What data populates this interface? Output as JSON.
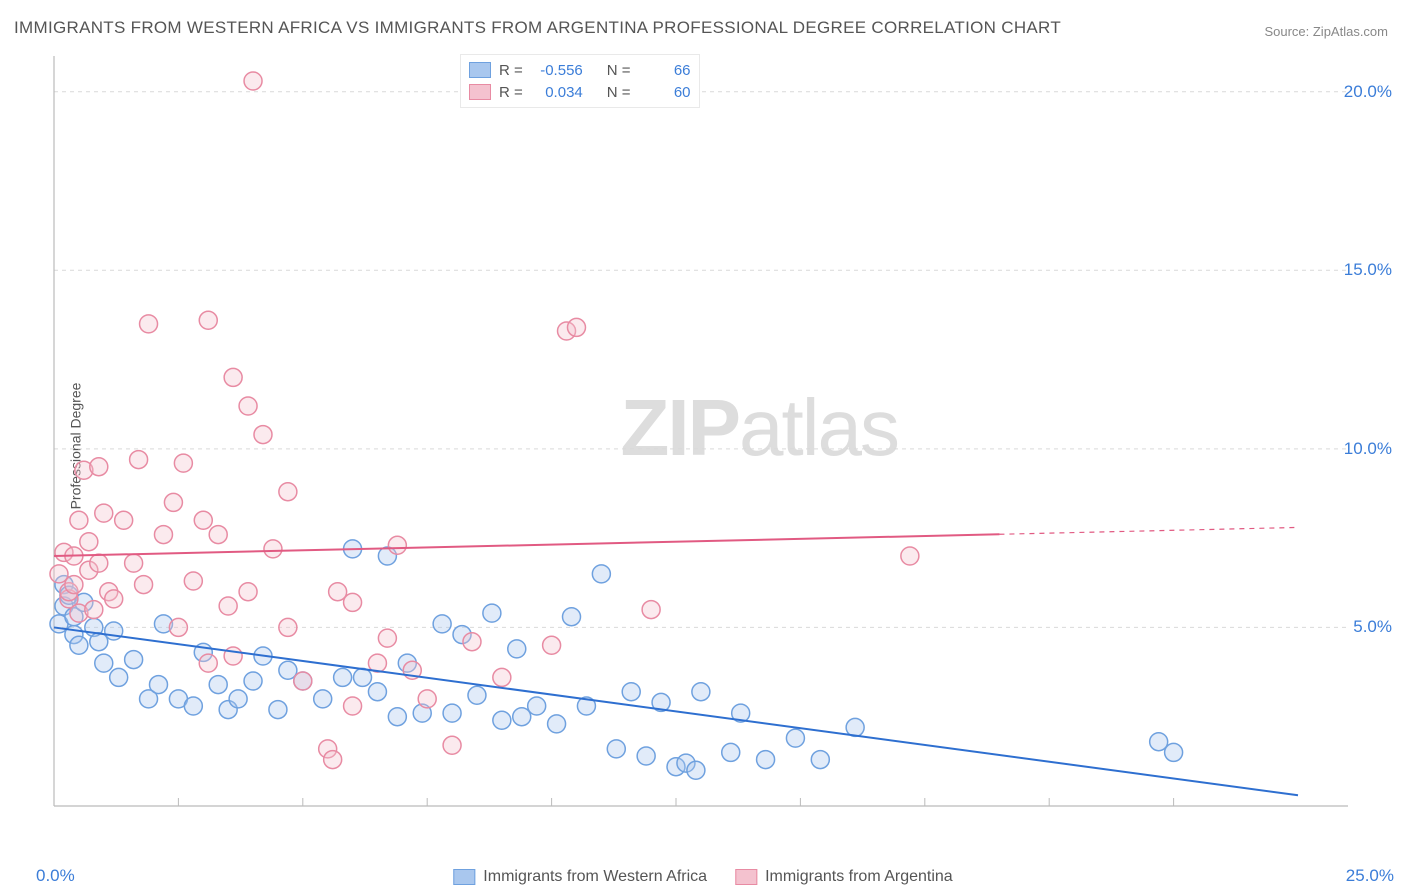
{
  "title": "IMMIGRANTS FROM WESTERN AFRICA VS IMMIGRANTS FROM ARGENTINA PROFESSIONAL DEGREE CORRELATION CHART",
  "source_label": "Source: ",
  "source_link": "ZipAtlas.com",
  "y_axis_label": "Professional Degree",
  "watermark_bold": "ZIP",
  "watermark_rest": "atlas",
  "chart": {
    "type": "scatter",
    "xlim": [
      0,
      25
    ],
    "ylim": [
      0,
      21
    ],
    "x_origin_label": "0.0%",
    "x_max_label": "25.0%",
    "y_ticks": [
      5.0,
      10.0,
      15.0,
      20.0
    ],
    "y_tick_labels": [
      "5.0%",
      "10.0%",
      "15.0%",
      "20.0%"
    ],
    "x_ticks_minor": [
      2.5,
      5.0,
      7.5,
      10.0,
      12.5,
      15.0,
      17.5,
      20.0,
      22.5
    ],
    "grid_color": "#d9d9d9",
    "axis_color": "#bbbbbb",
    "background_color": "#ffffff",
    "marker_radius": 9,
    "marker_stroke_width": 1.5,
    "marker_fill_opacity": 0.35,
    "trend_line_width": 2,
    "trend_dash_width": 1.2,
    "series": [
      {
        "name": "Immigrants from Western Africa",
        "color_fill": "#a9c7ee",
        "color_stroke": "#6fa1df",
        "trend_color": "#2e6fd0",
        "R": "-0.556",
        "N": "66",
        "trend": {
          "x1": 0,
          "y1": 5.0,
          "x2": 25,
          "y2": 0.3,
          "solid_until_x": 25
        },
        "points": [
          [
            0.1,
            5.1
          ],
          [
            0.2,
            6.2
          ],
          [
            0.2,
            5.6
          ],
          [
            0.3,
            5.9
          ],
          [
            0.4,
            4.8
          ],
          [
            0.4,
            5.3
          ],
          [
            0.5,
            4.5
          ],
          [
            0.6,
            5.7
          ],
          [
            0.8,
            5.0
          ],
          [
            0.9,
            4.6
          ],
          [
            1.0,
            4.0
          ],
          [
            1.2,
            4.9
          ],
          [
            1.3,
            3.6
          ],
          [
            1.6,
            4.1
          ],
          [
            1.9,
            3.0
          ],
          [
            2.1,
            3.4
          ],
          [
            2.2,
            5.1
          ],
          [
            2.5,
            3.0
          ],
          [
            2.8,
            2.8
          ],
          [
            3.0,
            4.3
          ],
          [
            3.3,
            3.4
          ],
          [
            3.5,
            2.7
          ],
          [
            3.7,
            3.0
          ],
          [
            4.0,
            3.5
          ],
          [
            4.2,
            4.2
          ],
          [
            4.5,
            2.7
          ],
          [
            4.7,
            3.8
          ],
          [
            5.0,
            3.5
          ],
          [
            5.4,
            3.0
          ],
          [
            5.8,
            3.6
          ],
          [
            6.0,
            7.2
          ],
          [
            6.2,
            3.6
          ],
          [
            6.5,
            3.2
          ],
          [
            6.7,
            7.0
          ],
          [
            6.9,
            2.5
          ],
          [
            7.1,
            4.0
          ],
          [
            7.4,
            2.6
          ],
          [
            7.8,
            5.1
          ],
          [
            8.0,
            2.6
          ],
          [
            8.2,
            4.8
          ],
          [
            8.5,
            3.1
          ],
          [
            8.8,
            5.4
          ],
          [
            9.0,
            2.4
          ],
          [
            9.3,
            4.4
          ],
          [
            9.4,
            2.5
          ],
          [
            9.7,
            2.8
          ],
          [
            10.1,
            2.3
          ],
          [
            10.4,
            5.3
          ],
          [
            10.7,
            2.8
          ],
          [
            11.0,
            6.5
          ],
          [
            11.3,
            1.6
          ],
          [
            11.6,
            3.2
          ],
          [
            11.9,
            1.4
          ],
          [
            12.2,
            2.9
          ],
          [
            12.5,
            1.1
          ],
          [
            12.7,
            1.2
          ],
          [
            12.9,
            1.0
          ],
          [
            13.0,
            3.2
          ],
          [
            13.6,
            1.5
          ],
          [
            13.8,
            2.6
          ],
          [
            14.3,
            1.3
          ],
          [
            14.9,
            1.9
          ],
          [
            15.4,
            1.3
          ],
          [
            16.1,
            2.2
          ],
          [
            22.2,
            1.8
          ],
          [
            22.5,
            1.5
          ]
        ]
      },
      {
        "name": "Immigrants from Argentina",
        "color_fill": "#f4c2cf",
        "color_stroke": "#e88ba3",
        "trend_color": "#e15a82",
        "R": "0.034",
        "N": "60",
        "trend": {
          "x1": 0,
          "y1": 7.0,
          "x2": 25,
          "y2": 7.8,
          "solid_until_x": 19
        },
        "points": [
          [
            0.1,
            6.5
          ],
          [
            0.2,
            7.1
          ],
          [
            0.3,
            5.8
          ],
          [
            0.3,
            6.0
          ],
          [
            0.4,
            7.0
          ],
          [
            0.4,
            6.2
          ],
          [
            0.5,
            8.0
          ],
          [
            0.5,
            5.4
          ],
          [
            0.6,
            9.4
          ],
          [
            0.7,
            7.4
          ],
          [
            0.7,
            6.6
          ],
          [
            0.8,
            5.5
          ],
          [
            0.9,
            6.8
          ],
          [
            0.9,
            9.5
          ],
          [
            1.0,
            8.2
          ],
          [
            1.1,
            6.0
          ],
          [
            1.2,
            5.8
          ],
          [
            1.4,
            8.0
          ],
          [
            1.6,
            6.8
          ],
          [
            1.7,
            9.7
          ],
          [
            1.8,
            6.2
          ],
          [
            1.9,
            13.5
          ],
          [
            2.2,
            7.6
          ],
          [
            2.4,
            8.5
          ],
          [
            2.5,
            5.0
          ],
          [
            2.6,
            9.6
          ],
          [
            2.8,
            6.3
          ],
          [
            3.0,
            8.0
          ],
          [
            3.1,
            4.0
          ],
          [
            3.1,
            13.6
          ],
          [
            3.3,
            7.6
          ],
          [
            3.5,
            5.6
          ],
          [
            3.6,
            12.0
          ],
          [
            3.6,
            4.2
          ],
          [
            3.9,
            6.0
          ],
          [
            3.9,
            11.2
          ],
          [
            4.0,
            20.3
          ],
          [
            4.2,
            10.4
          ],
          [
            4.4,
            7.2
          ],
          [
            4.7,
            5.0
          ],
          [
            4.7,
            8.8
          ],
          [
            5.0,
            3.5
          ],
          [
            5.5,
            1.6
          ],
          [
            5.6,
            1.3
          ],
          [
            5.7,
            6.0
          ],
          [
            6.0,
            2.8
          ],
          [
            6.0,
            5.7
          ],
          [
            6.5,
            4.0
          ],
          [
            6.7,
            4.7
          ],
          [
            6.9,
            7.3
          ],
          [
            7.2,
            3.8
          ],
          [
            7.5,
            3.0
          ],
          [
            8.0,
            1.7
          ],
          [
            8.4,
            4.6
          ],
          [
            9.0,
            3.6
          ],
          [
            10.0,
            4.5
          ],
          [
            10.3,
            13.3
          ],
          [
            10.5,
            13.4
          ],
          [
            12.0,
            5.5
          ],
          [
            17.2,
            7.0
          ]
        ]
      }
    ]
  },
  "legend_bottom": {
    "items": [
      {
        "label": "Immigrants from Western Africa",
        "fill": "#a9c7ee",
        "stroke": "#6fa1df"
      },
      {
        "label": "Immigrants from Argentina",
        "fill": "#f4c2cf",
        "stroke": "#e88ba3"
      }
    ]
  }
}
